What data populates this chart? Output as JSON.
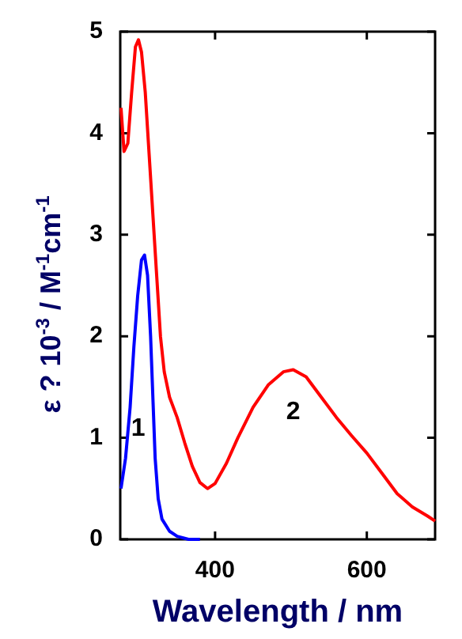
{
  "chart_data": {
    "type": "line",
    "xlabel": "Wavelength / nm",
    "ylabel": "ε ? 10$^{-3}$ / M$^{-1}$cm$^{-1}$",
    "xlim": [
      275,
      690
    ],
    "xticks": [
      400,
      600
    ],
    "ylim": [
      0,
      5
    ],
    "yticks": [
      0,
      1,
      2,
      3,
      4,
      5
    ],
    "marker": "none",
    "line_style": "solid",
    "legend": false,
    "series": [
      {
        "name": "2",
        "color": "#ff0000",
        "x": [
          276,
          280,
          285,
          290,
          295,
          299,
          303,
          308,
          313,
          318,
          323,
          328,
          333,
          340,
          350,
          360,
          370,
          380,
          390,
          400,
          415,
          430,
          450,
          470,
          490,
          503,
          520,
          540,
          560,
          580,
          600,
          620,
          640,
          660,
          680,
          690
        ],
        "values": [
          4.25,
          3.82,
          3.9,
          4.4,
          4.85,
          4.92,
          4.8,
          4.4,
          3.8,
          3.2,
          2.6,
          2.0,
          1.65,
          1.4,
          1.2,
          0.95,
          0.72,
          0.56,
          0.5,
          0.55,
          0.75,
          1.0,
          1.3,
          1.52,
          1.65,
          1.67,
          1.6,
          1.4,
          1.2,
          1.02,
          0.85,
          0.65,
          0.45,
          0.32,
          0.23,
          0.18
        ]
      },
      {
        "name": "1",
        "color": "#0000ff",
        "x": [
          276,
          282,
          288,
          293,
          298,
          303,
          307,
          311,
          315,
          318,
          321,
          325,
          330,
          340,
          350,
          365,
          380
        ],
        "values": [
          0.5,
          0.8,
          1.3,
          1.9,
          2.4,
          2.75,
          2.8,
          2.6,
          2.0,
          1.4,
          0.8,
          0.4,
          0.2,
          0.08,
          0.03,
          0,
          0
        ]
      }
    ]
  }
}
